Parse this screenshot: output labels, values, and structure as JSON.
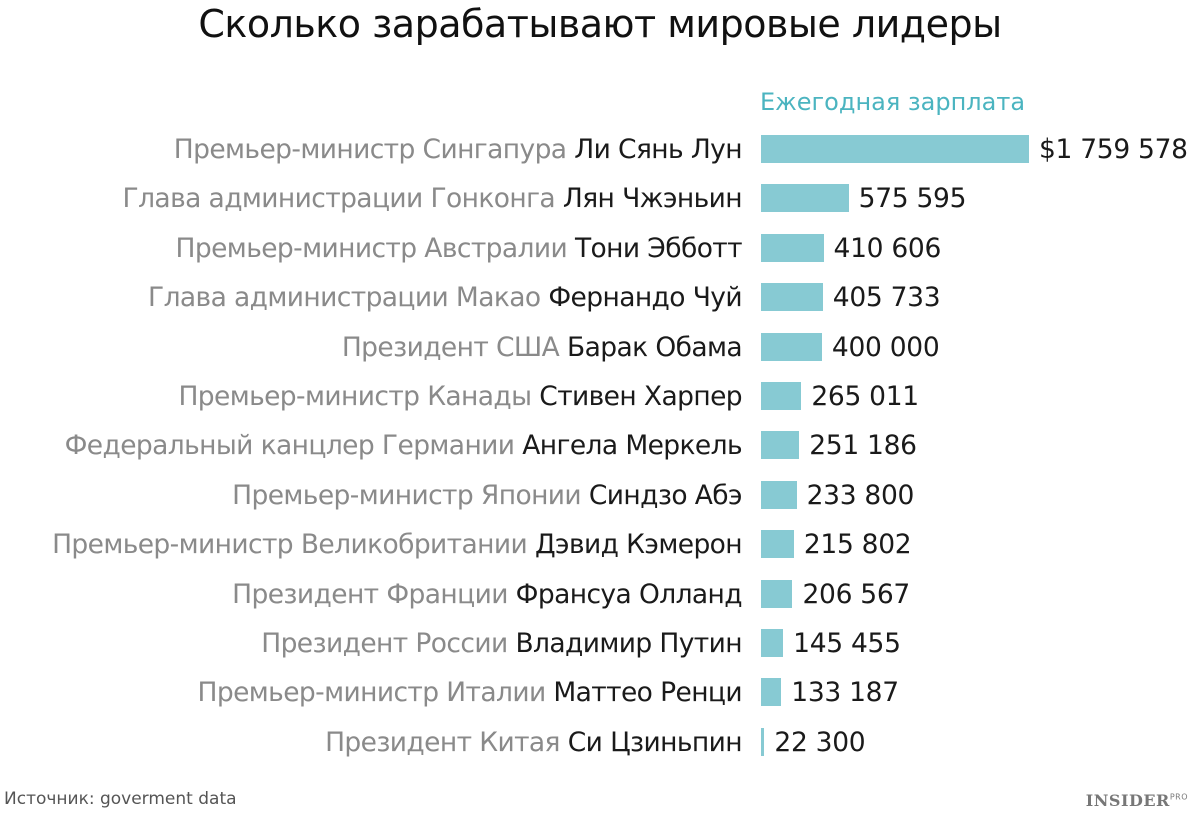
{
  "title": "Сколько зарабатывают мировые лидеры",
  "source": "Источник: goverment data",
  "brand": {
    "main": "INSIDER",
    "suffix": "PRO"
  },
  "colors": {
    "bar": "#87cad3",
    "subtitle": "#4bb4c0",
    "role_text": "#8a8a8a",
    "name_text": "#1a1a1a"
  },
  "chart_data": {
    "type": "bar",
    "orientation": "horizontal",
    "title": "Сколько зарабатывают мировые лидеры",
    "subtitle": "Ежегодная зарплата",
    "categories": [
      "Премьер-министр Сингапура Ли Сянь Лун",
      "Глава администрации Гонконга Лян Чжэньин",
      "Премьер-министр Австралии Тони Эбботт",
      "Глава администрации Макао Фернандо Чуй",
      "Президент США Барак Обама",
      "Премьер-министр Канады Стивен Харпер",
      "Федеральный канцлер Германии Ангела Меркель",
      "Премьер-министр Японии Синдзо Абэ",
      "Премьер-министр Великобритании Дэвид Кэмерон",
      "Президент Франции Франсуа Олланд",
      "Президент России Владимир Путин",
      "Премьер-министр Италии Маттео Ренци",
      "Президент Китая Си Цзиньпин"
    ],
    "values": [
      1759578,
      575595,
      410606,
      405733,
      400000,
      265011,
      251186,
      233800,
      215802,
      206567,
      145455,
      133187,
      22300
    ],
    "xlim": [
      0,
      1759578
    ],
    "grid": false,
    "legend": "none",
    "rows": [
      {
        "role": "Премьер-министр Сингапура",
        "name": "Ли Сянь Лун",
        "value": 1759578,
        "value_label": "$1 759 578"
      },
      {
        "role": "Глава администрации Гонконга",
        "name": "Лян Чжэньин",
        "value": 575595,
        "value_label": "575 595"
      },
      {
        "role": "Премьер-министр Австралии",
        "name": "Тони Эбботт",
        "value": 410606,
        "value_label": "410 606"
      },
      {
        "role": "Глава администрации Макао",
        "name": "Фернандо Чуй",
        "value": 405733,
        "value_label": "405 733"
      },
      {
        "role": "Президент США",
        "name": "Барак Обама",
        "value": 400000,
        "value_label": "400 000"
      },
      {
        "role": "Премьер-министр Канады",
        "name": "Стивен Харпер",
        "value": 265011,
        "value_label": "265 011"
      },
      {
        "role": "Федеральный канцлер Германии",
        "name": "Ангела Меркель",
        "value": 251186,
        "value_label": "251 186"
      },
      {
        "role": "Премьер-министр Японии",
        "name": "Синдзо Абэ",
        "value": 233800,
        "value_label": "233 800"
      },
      {
        "role": "Премьер-министр Великобритании",
        "name": "Дэвид Кэмерон",
        "value": 215802,
        "value_label": "215 802"
      },
      {
        "role": "Президент Франции",
        "name": "Франсуа Олланд",
        "value": 206567,
        "value_label": "206 567"
      },
      {
        "role": "Президент России",
        "name": "Владимир Путин",
        "value": 145455,
        "value_label": "145 455"
      },
      {
        "role": "Премьер-министр Италии",
        "name": "Маттео Ренци",
        "value": 133187,
        "value_label": "133 187"
      },
      {
        "role": "Президент Китая",
        "name": "Си Цзиньпин",
        "value": 22300,
        "value_label": "22 300"
      }
    ]
  }
}
